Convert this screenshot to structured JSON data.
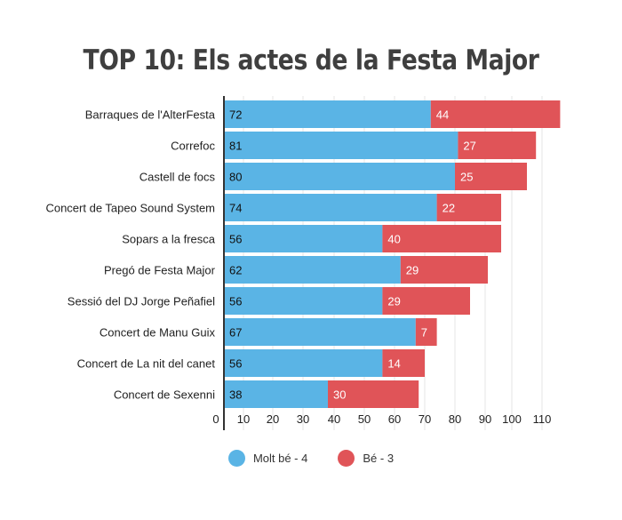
{
  "chart_data": {
    "type": "bar",
    "orientation": "horizontal",
    "stacked": true,
    "title": "TOP 10: Els actes de la Festa Major",
    "categories": [
      "Barraques de l'AlterFesta",
      "Correfoc",
      "Castell de focs",
      "Concert de Tapeo Sound System",
      "Sopars a la fresca",
      "Pregó de Festa Major",
      "Sessió del DJ Jorge Peñafiel",
      "Concert de Manu Guix",
      "Concert de La nit del canet",
      "Concert de Sexenni"
    ],
    "series": [
      {
        "name": "Molt bé - 4",
        "color": "#5ab4e5",
        "values": [
          72,
          81,
          80,
          74,
          56,
          62,
          56,
          67,
          56,
          38
        ]
      },
      {
        "name": "Bé - 3",
        "color": "#e05458",
        "values": [
          44,
          27,
          25,
          22,
          40,
          29,
          29,
          7,
          14,
          30
        ]
      }
    ],
    "xticks": [
      "0",
      "10",
      "20",
      "30",
      "40",
      "50",
      "60",
      "70",
      "80",
      "90",
      "100",
      "110"
    ],
    "xlim": [
      0,
      116
    ],
    "grid": true,
    "legend_position": "bottom"
  }
}
